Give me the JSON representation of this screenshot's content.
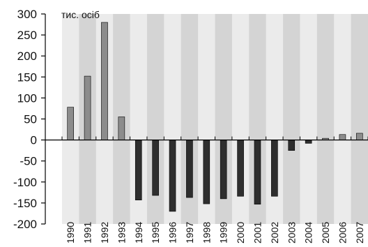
{
  "chart_data": {
    "type": "bar",
    "title": "",
    "xlabel": "",
    "ylabel": "тис. осіб",
    "ylim": [
      -200,
      300
    ],
    "yticks": [
      300,
      250,
      200,
      150,
      100,
      50,
      0,
      -50,
      -100,
      -150,
      -200
    ],
    "categories": [
      "1990",
      "1991",
      "1992",
      "1993",
      "1994",
      "1995",
      "1996",
      "1997",
      "1998",
      "1999",
      "2000",
      "2001",
      "2002",
      "2003",
      "2004",
      "2005",
      "2006",
      "2007"
    ],
    "values": [
      78,
      152,
      280,
      55,
      -143,
      -132,
      -170,
      -137,
      -152,
      -140,
      -134,
      -153,
      -134,
      -25,
      -8,
      4,
      13,
      16
    ],
    "grid": false,
    "legend": "none",
    "colors": {
      "positive": "#8c8c8c",
      "negative": "#2e2e2e",
      "stripe_light": "#ebebeb",
      "stripe_dark": "#d4d4d4",
      "axis": "#000000"
    }
  }
}
